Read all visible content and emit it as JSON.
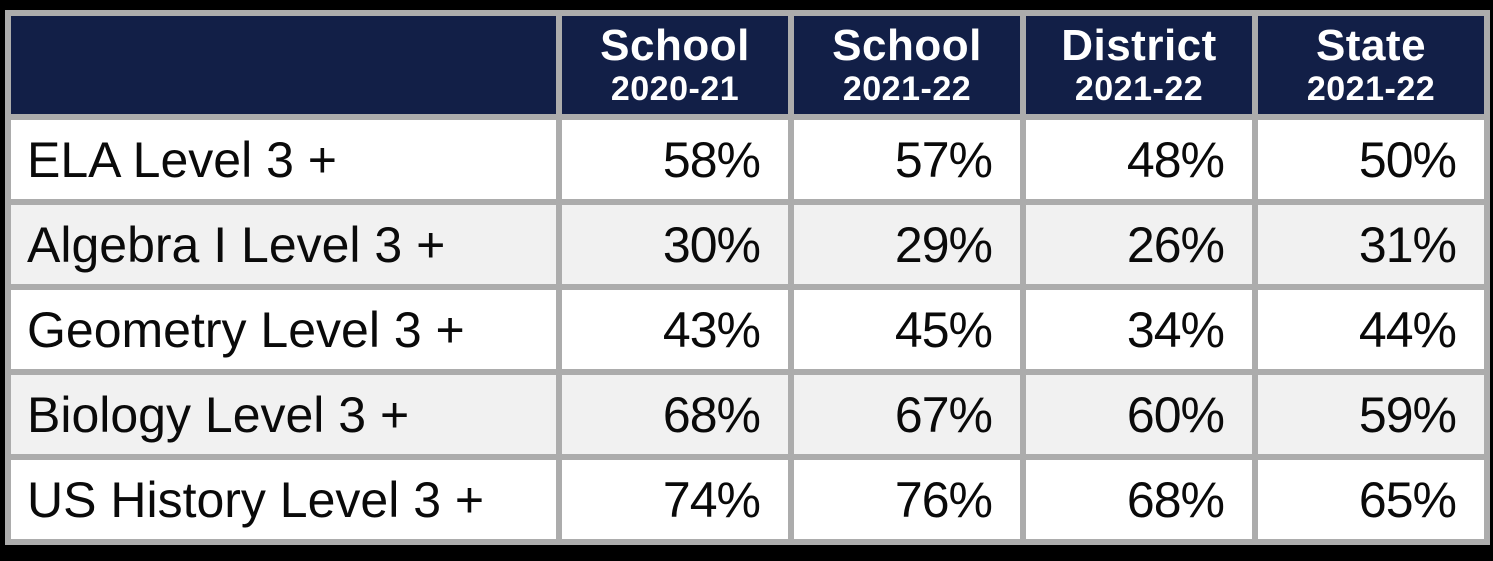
{
  "chart_data": {
    "type": "table",
    "title": "",
    "unit": "%",
    "corner_label": "",
    "columns": [
      {
        "line1": "School",
        "line2": "2020-21"
      },
      {
        "line1": "School",
        "line2": "2021-22"
      },
      {
        "line1": "District",
        "line2": "2021-22"
      },
      {
        "line1": "State",
        "line2": "2021-22"
      }
    ],
    "rows": [
      {
        "label": "ELA Level 3 +",
        "values": [
          "58%",
          "57%",
          "48%",
          "50%"
        ]
      },
      {
        "label": "Algebra I Level 3 +",
        "values": [
          "30%",
          "29%",
          "26%",
          "31%"
        ]
      },
      {
        "label": "Geometry Level 3 +",
        "values": [
          "43%",
          "45%",
          "34%",
          "44%"
        ]
      },
      {
        "label": "Biology Level 3 +",
        "values": [
          "68%",
          "67%",
          "60%",
          "59%"
        ]
      },
      {
        "label": "US History Level 3 +",
        "values": [
          "74%",
          "76%",
          "68%",
          "65%"
        ]
      }
    ],
    "colors": {
      "header_background": "#121F47",
      "header_text": "#FFFFFF",
      "grid_border": "#ACACAC",
      "row_odd_background": "#FFFFFF",
      "row_even_background": "#F1F1F1",
      "body_text": "#0A0A0A",
      "outer_frame": "#000000"
    },
    "layout_hints": {
      "grid": "on",
      "header_rows": 1,
      "label_column_align": "left",
      "value_columns_align": "right"
    }
  }
}
